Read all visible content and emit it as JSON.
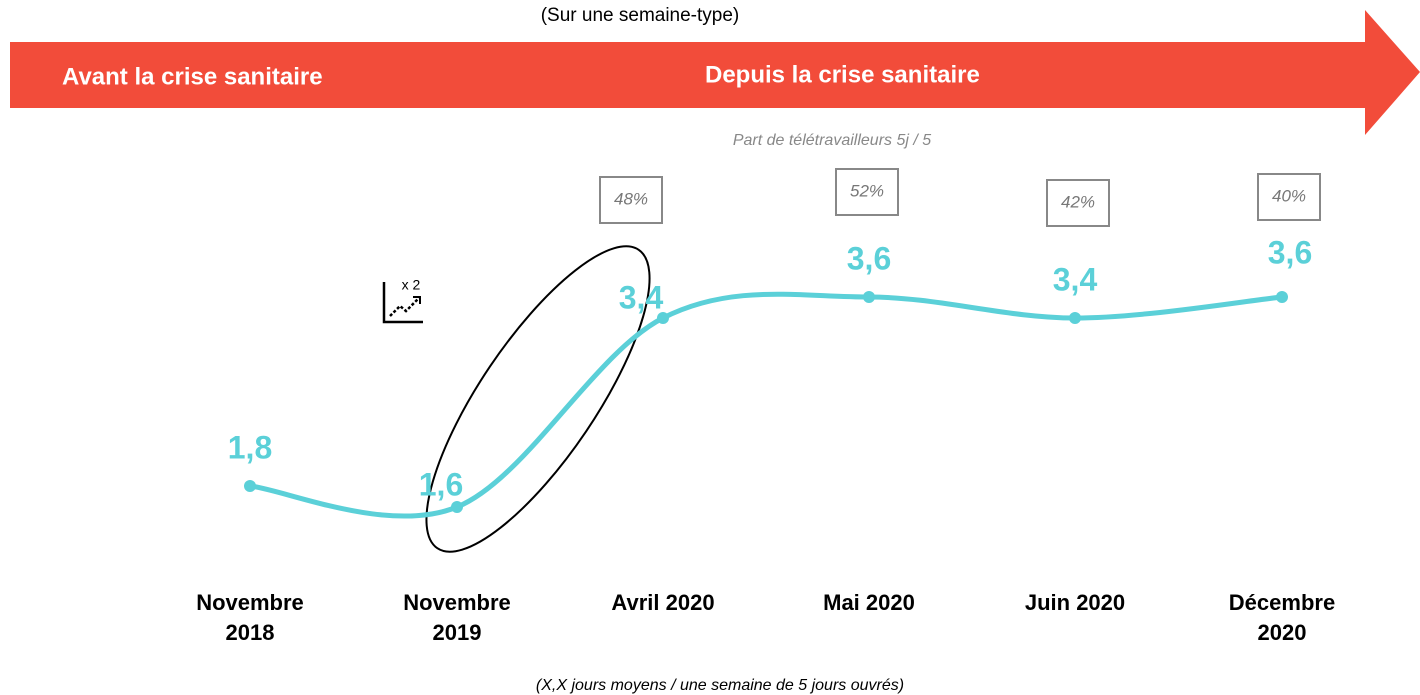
{
  "chart_data": {
    "type": "line",
    "subtitle": "(Sur une semaine-type)",
    "period_labels": [
      "Avant la crise sanitaire",
      "Depuis la crise sanitaire"
    ],
    "categories": [
      "Novembre 2018",
      "Novembre 2019",
      "Avril 2020",
      "Mai 2020",
      "Juin 2020",
      "Décembre 2020"
    ],
    "values": [
      1.8,
      1.6,
      3.4,
      3.6,
      3.4,
      3.6
    ],
    "value_labels": [
      "1,8",
      "1,6",
      "3,4",
      "3,6",
      "3,4",
      "3,6"
    ],
    "color": "#5bd0d8",
    "shares": {
      "title": "Part de télétravailleurs 5j / 5",
      "values": [
        48,
        52,
        42,
        40
      ],
      "value_labels": [
        "48%",
        "52%",
        "42%",
        "40%"
      ]
    },
    "annotation": "x 2",
    "footnote": "(X,X jours moyens / une semaine de 5 jours ouvrés)"
  }
}
